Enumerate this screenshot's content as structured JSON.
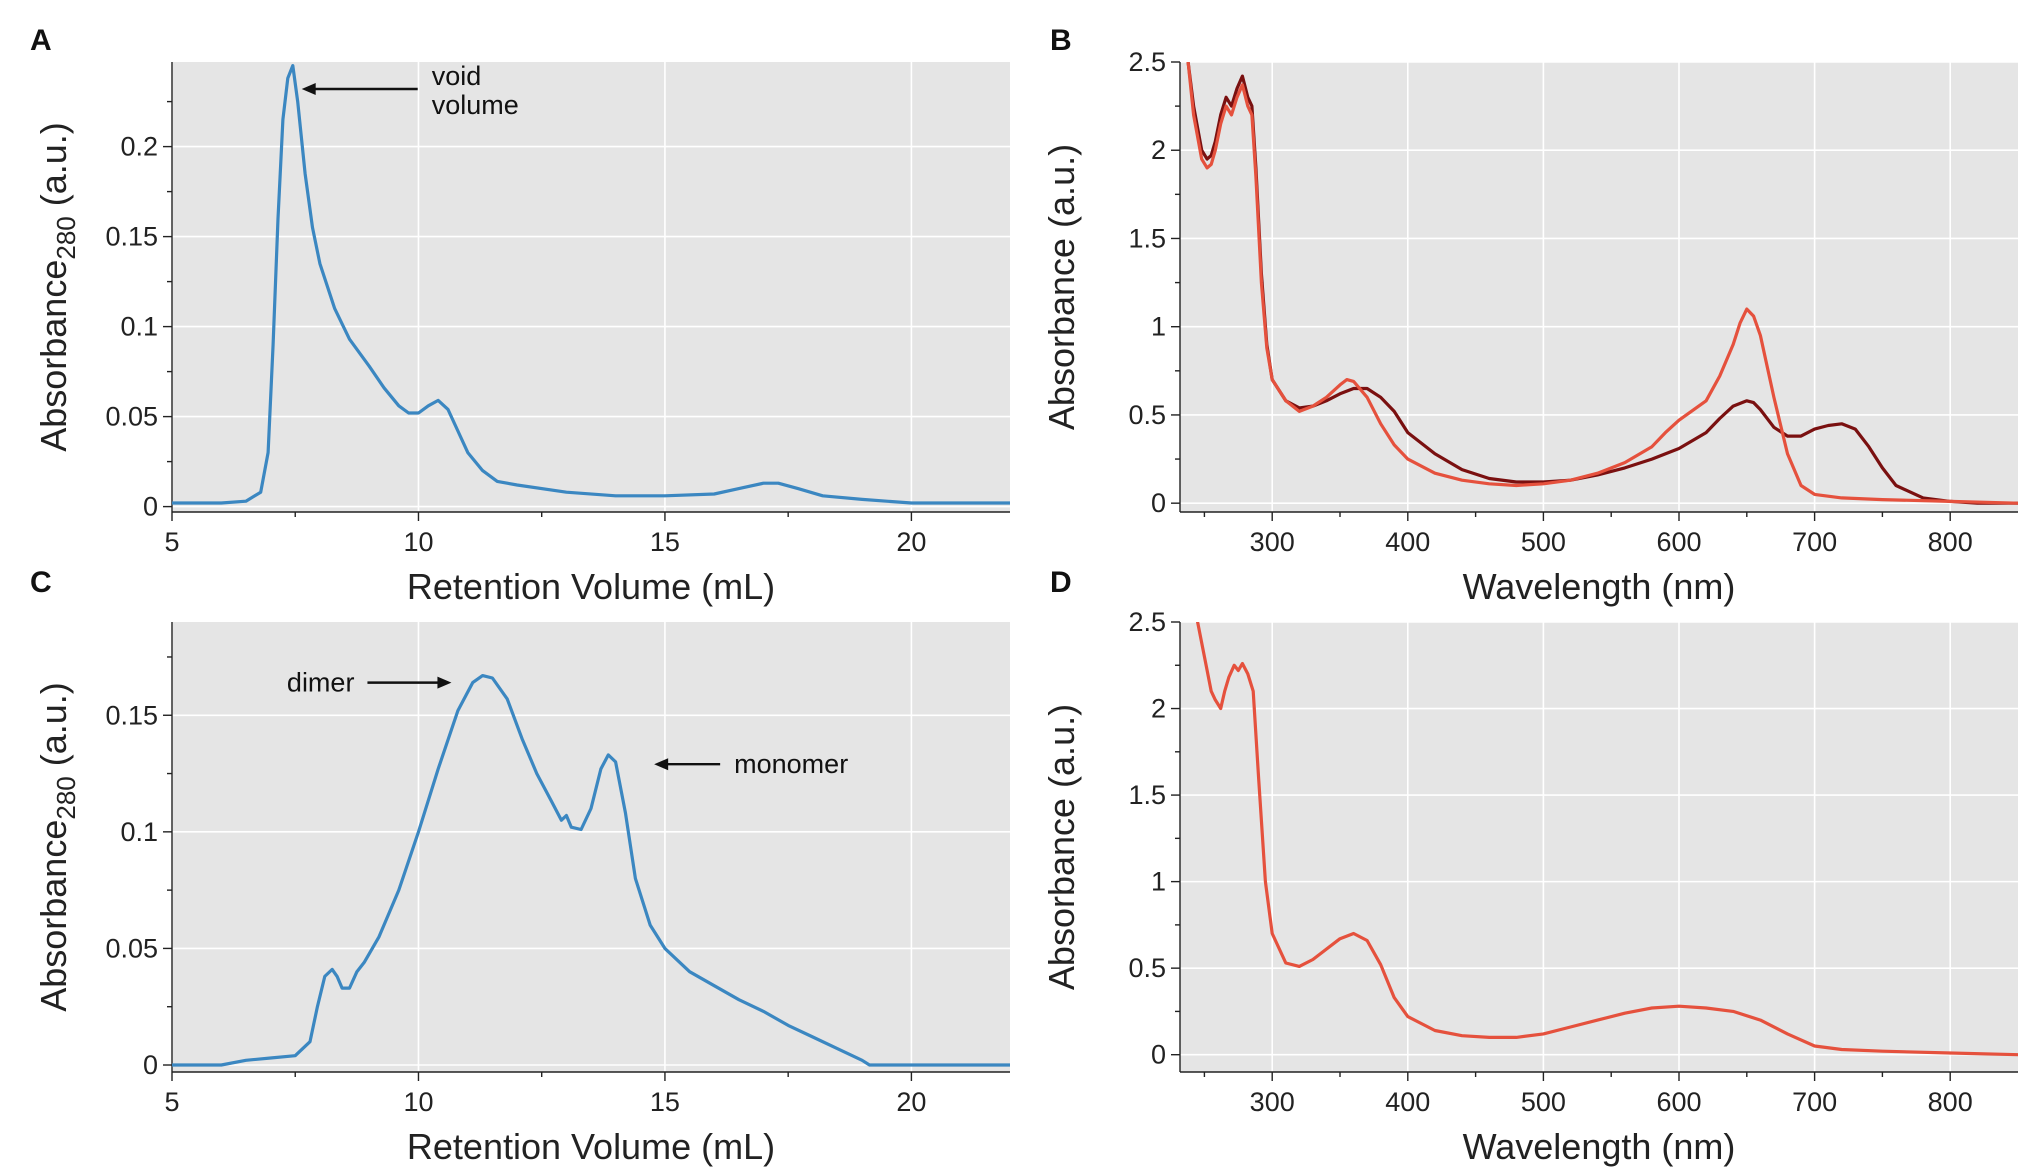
{
  "chart_data": [
    {
      "panel": "A",
      "type": "line",
      "xlabel": "Retention Volume (mL)",
      "ylabel": "Absorbance280",
      "ylabel_main": "Absorbance",
      "ylabel_sub": "280",
      "ylabel_suffix": " (a.u.)",
      "xlim": [
        5,
        22
      ],
      "ylim": [
        -0.003,
        0.247
      ],
      "xticks": [
        5,
        10,
        15,
        20
      ],
      "xtick_labels": [
        "5",
        "10",
        "15",
        "20"
      ],
      "yticks": [
        0,
        0.05,
        0.1,
        0.15,
        0.2
      ],
      "ytick_labels": [
        "0",
        "0.05",
        "0.1",
        "0.15",
        "0.2"
      ],
      "grid": true,
      "annotations": [
        {
          "lines": [
            "void",
            "volume"
          ],
          "point_x": 7.55,
          "point_y": 0.232
        }
      ],
      "series": [
        {
          "name": "SEC trace",
          "color": "#3b87c1",
          "x": [
            5,
            6,
            6.5,
            6.8,
            6.95,
            7.05,
            7.15,
            7.25,
            7.35,
            7.45,
            7.55,
            7.7,
            7.85,
            8.0,
            8.3,
            8.6,
            9.0,
            9.3,
            9.6,
            9.8,
            10.0,
            10.2,
            10.4,
            10.6,
            10.8,
            11.0,
            11.3,
            11.6,
            12.0,
            13.0,
            14.0,
            15.0,
            16.0,
            16.5,
            17.0,
            17.3,
            17.7,
            18.2,
            19.0,
            20.0,
            21.0,
            22.0
          ],
          "y": [
            0.002,
            0.002,
            0.003,
            0.008,
            0.03,
            0.09,
            0.16,
            0.215,
            0.238,
            0.245,
            0.225,
            0.185,
            0.155,
            0.135,
            0.11,
            0.093,
            0.078,
            0.066,
            0.056,
            0.052,
            0.052,
            0.056,
            0.059,
            0.054,
            0.042,
            0.03,
            0.02,
            0.014,
            0.012,
            0.008,
            0.006,
            0.006,
            0.007,
            0.01,
            0.013,
            0.013,
            0.01,
            0.006,
            0.004,
            0.002,
            0.002,
            0.002
          ]
        }
      ]
    },
    {
      "panel": "B",
      "type": "line",
      "xlabel": "Wavelength (nm)",
      "ylabel": "Absorbance (a.u.)",
      "xlim": [
        232,
        850
      ],
      "ylim": [
        -0.05,
        2.5
      ],
      "xticks": [
        300,
        400,
        500,
        600,
        700,
        800
      ],
      "xtick_labels": [
        "300",
        "400",
        "500",
        "600",
        "700",
        "800"
      ],
      "yticks": [
        0,
        0.5,
        1,
        1.5,
        2,
        2.5
      ],
      "ytick_labels": [
        "0",
        "0.5",
        "1",
        "1.5",
        "2",
        "2.5"
      ],
      "grid": true,
      "series": [
        {
          "name": "dark red spectrum",
          "color": "#7a1010",
          "x": [
            238,
            242,
            248,
            252,
            255,
            258,
            262,
            266,
            270,
            274,
            278,
            282,
            285,
            288,
            292,
            296,
            300,
            310,
            320,
            330,
            340,
            350,
            360,
            370,
            380,
            390,
            400,
            420,
            440,
            460,
            480,
            500,
            520,
            540,
            560,
            580,
            600,
            620,
            630,
            640,
            650,
            655,
            660,
            670,
            680,
            690,
            700,
            710,
            720,
            730,
            740,
            750,
            760,
            780,
            800,
            820,
            850
          ],
          "y": [
            2.5,
            2.25,
            2.0,
            1.95,
            1.97,
            2.05,
            2.2,
            2.3,
            2.25,
            2.35,
            2.42,
            2.3,
            2.25,
            1.9,
            1.3,
            0.9,
            0.7,
            0.58,
            0.54,
            0.55,
            0.58,
            0.62,
            0.65,
            0.65,
            0.6,
            0.52,
            0.4,
            0.28,
            0.19,
            0.14,
            0.12,
            0.12,
            0.13,
            0.16,
            0.2,
            0.25,
            0.31,
            0.4,
            0.48,
            0.55,
            0.58,
            0.57,
            0.53,
            0.43,
            0.38,
            0.38,
            0.42,
            0.44,
            0.45,
            0.42,
            0.32,
            0.2,
            0.1,
            0.03,
            0.01,
            0.0,
            0.0
          ]
        },
        {
          "name": "red spectrum",
          "color": "#e5513d",
          "x": [
            238,
            242,
            248,
            252,
            255,
            258,
            262,
            266,
            270,
            274,
            278,
            282,
            285,
            288,
            292,
            296,
            300,
            310,
            320,
            330,
            340,
            350,
            355,
            360,
            370,
            380,
            390,
            400,
            420,
            440,
            460,
            480,
            500,
            520,
            540,
            560,
            580,
            590,
            600,
            620,
            630,
            640,
            645,
            650,
            655,
            660,
            670,
            680,
            690,
            700,
            720,
            750,
            800,
            850
          ],
          "y": [
            2.5,
            2.2,
            1.95,
            1.9,
            1.92,
            2.0,
            2.15,
            2.25,
            2.2,
            2.3,
            2.37,
            2.25,
            2.2,
            1.85,
            1.25,
            0.88,
            0.7,
            0.58,
            0.52,
            0.55,
            0.6,
            0.67,
            0.7,
            0.69,
            0.6,
            0.45,
            0.33,
            0.25,
            0.17,
            0.13,
            0.11,
            0.1,
            0.11,
            0.13,
            0.17,
            0.23,
            0.32,
            0.4,
            0.47,
            0.58,
            0.72,
            0.9,
            1.02,
            1.1,
            1.06,
            0.95,
            0.6,
            0.28,
            0.1,
            0.05,
            0.03,
            0.02,
            0.01,
            0.0
          ]
        }
      ]
    },
    {
      "panel": "C",
      "type": "line",
      "xlabel": "Retention Volume (mL)",
      "ylabel": "Absorbance280",
      "ylabel_main": "Absorbance",
      "ylabel_sub": "280",
      "ylabel_suffix": " (a.u.)",
      "xlim": [
        5,
        22
      ],
      "ylim": [
        -0.003,
        0.19
      ],
      "xticks": [
        5,
        10,
        15,
        20
      ],
      "xtick_labels": [
        "5",
        "10",
        "15",
        "20"
      ],
      "yticks": [
        0,
        0.05,
        0.1,
        0.15
      ],
      "ytick_labels": [
        "0",
        "0.05",
        "0.1",
        "0.15"
      ],
      "grid": true,
      "annotations": [
        {
          "text": "dimer",
          "point_x": 10.75,
          "point_y": 0.164,
          "side": "left"
        },
        {
          "text": "monomer",
          "point_x": 14.7,
          "point_y": 0.129,
          "side": "right"
        }
      ],
      "series": [
        {
          "name": "SEC trace",
          "color": "#3b87c1",
          "x": [
            5,
            6,
            6.5,
            7.0,
            7.5,
            7.8,
            7.95,
            8.1,
            8.25,
            8.35,
            8.45,
            8.6,
            8.75,
            8.9,
            9.2,
            9.6,
            10.0,
            10.4,
            10.8,
            11.1,
            11.3,
            11.5,
            11.8,
            12.1,
            12.4,
            12.7,
            12.9,
            13.0,
            13.1,
            13.3,
            13.5,
            13.7,
            13.85,
            14.0,
            14.2,
            14.4,
            14.7,
            15.0,
            15.5,
            16.0,
            16.5,
            17.0,
            17.5,
            18.0,
            18.5,
            19.0,
            19.15,
            20.0,
            22.0
          ],
          "y": [
            0.0,
            0.0,
            0.002,
            0.003,
            0.004,
            0.01,
            0.025,
            0.038,
            0.041,
            0.038,
            0.033,
            0.033,
            0.04,
            0.044,
            0.055,
            0.075,
            0.1,
            0.127,
            0.152,
            0.164,
            0.167,
            0.166,
            0.157,
            0.14,
            0.125,
            0.113,
            0.105,
            0.107,
            0.102,
            0.101,
            0.11,
            0.127,
            0.133,
            0.13,
            0.108,
            0.08,
            0.06,
            0.05,
            0.04,
            0.034,
            0.028,
            0.023,
            0.017,
            0.012,
            0.007,
            0.002,
            0.0,
            0.0,
            0.0
          ]
        }
      ]
    },
    {
      "panel": "D",
      "type": "line",
      "xlabel": "Wavelength (nm)",
      "ylabel": "Absorbance (a.u.)",
      "xlim": [
        232,
        850
      ],
      "ylim": [
        -0.1,
        2.5
      ],
      "xticks": [
        300,
        400,
        500,
        600,
        700,
        800
      ],
      "xtick_labels": [
        "300",
        "400",
        "500",
        "600",
        "700",
        "800"
      ],
      "yticks": [
        0,
        0.5,
        1,
        1.5,
        2,
        2.5
      ],
      "ytick_labels": [
        "0",
        "0.5",
        "1",
        "1.5",
        "2",
        "2.5"
      ],
      "grid": true,
      "series": [
        {
          "name": "spectrum",
          "color": "#e5513d",
          "x": [
            245,
            250,
            255,
            258,
            262,
            265,
            268,
            272,
            275,
            278,
            282,
            286,
            290,
            295,
            300,
            310,
            320,
            330,
            340,
            350,
            360,
            370,
            380,
            390,
            400,
            420,
            440,
            460,
            480,
            500,
            520,
            540,
            560,
            580,
            600,
            620,
            640,
            660,
            680,
            700,
            720,
            750,
            800,
            850
          ],
          "y": [
            2.5,
            2.3,
            2.1,
            2.05,
            2.0,
            2.1,
            2.18,
            2.25,
            2.22,
            2.26,
            2.2,
            2.1,
            1.6,
            1.0,
            0.7,
            0.53,
            0.51,
            0.55,
            0.61,
            0.67,
            0.7,
            0.66,
            0.52,
            0.33,
            0.22,
            0.14,
            0.11,
            0.1,
            0.1,
            0.12,
            0.16,
            0.2,
            0.24,
            0.27,
            0.28,
            0.27,
            0.25,
            0.2,
            0.12,
            0.05,
            0.03,
            0.02,
            0.01,
            0.0
          ]
        }
      ]
    }
  ]
}
